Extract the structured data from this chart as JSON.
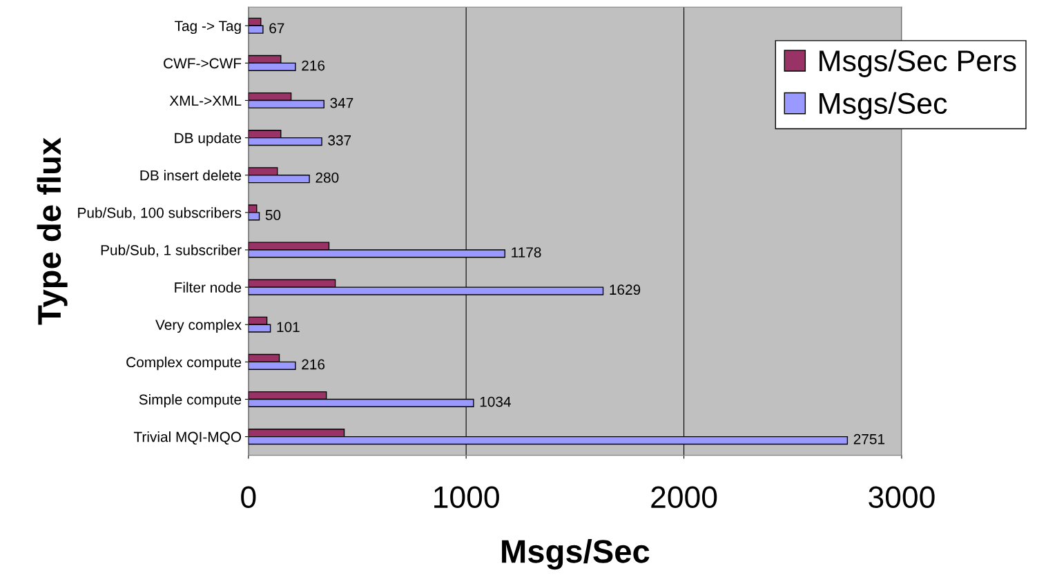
{
  "chart_data": {
    "type": "bar",
    "orientation": "horizontal",
    "xlabel": "Msgs/Sec",
    "ylabel": "Type de flux",
    "categories": [
      "Tag -> Tag",
      "CWF->CWF",
      "XML->XML",
      "DB update",
      "DB insert delete",
      "Pub/Sub, 100 subscribers",
      "Pub/Sub, 1 subscriber",
      "Filter node",
      "Very complex",
      "Complex compute",
      "Simple compute",
      "Trivial MQI-MQO"
    ],
    "series": [
      {
        "name": "Msgs/Sec Pers",
        "color": "#993366",
        "values": [
          57,
          149,
          196,
          149,
          133,
          38,
          370,
          399,
          85,
          142,
          358,
          440
        ]
      },
      {
        "name": "Msgs/Sec",
        "color": "#9999ff",
        "values": [
          67,
          216,
          347,
          337,
          280,
          50,
          1178,
          1629,
          101,
          216,
          1034,
          2751
        ],
        "value_labels": [
          "67",
          "216",
          "347",
          "337",
          "280",
          "50",
          "1178",
          "1629",
          "101",
          "216",
          "1034",
          "2751"
        ]
      }
    ],
    "xlim": [
      0,
      3000
    ],
    "xticks": [
      0,
      1000,
      2000,
      3000
    ],
    "grid": "x",
    "legend": "top right"
  }
}
